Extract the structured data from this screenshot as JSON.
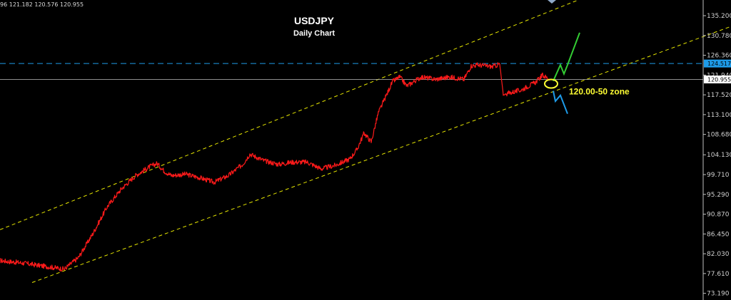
{
  "ohlc_readout": "96 121.182 120.576 120.955",
  "chart_data": {
    "type": "line",
    "title": "USDJPY",
    "subtitle": "Daily Chart",
    "xlabel": "",
    "ylabel": "",
    "ylim": [
      71.7,
      138.7
    ],
    "yticks": [
      "135.200",
      "130.780",
      "126.360",
      "121.940",
      "117.520",
      "113.100",
      "108.680",
      "104.130",
      "99.710",
      "95.290",
      "90.870",
      "86.450",
      "82.030",
      "77.610",
      "73.190"
    ],
    "grid": false,
    "price_series": {
      "name": "",
      "color": "#ff1a1a",
      "x": [
        0,
        30,
        60,
        90,
        110,
        130,
        150,
        170,
        190,
        210,
        220,
        230,
        240,
        260,
        280,
        300,
        320,
        340,
        350,
        370,
        390,
        410,
        430,
        450,
        470,
        490,
        500,
        510,
        520,
        530,
        540,
        550,
        560,
        570,
        590,
        610,
        630,
        650,
        660,
        670,
        690,
        700,
        705,
        710,
        730,
        750,
        760,
        770
      ],
      "y": [
        80.5,
        80.0,
        79.3,
        78.6,
        81.2,
        86.5,
        92.5,
        96.5,
        99.5,
        101.5,
        102.2,
        100.5,
        99.5,
        99.8,
        99.0,
        98.0,
        99.5,
        102.0,
        104.3,
        102.8,
        102.0,
        102.5,
        102.5,
        101.0,
        101.8,
        103.2,
        105.3,
        109.0,
        107.0,
        113.5,
        117.0,
        120.5,
        121.5,
        119.5,
        121.5,
        121.0,
        121.5,
        121.0,
        124.0,
        124.2,
        123.8,
        124.4,
        117.5,
        117.8,
        118.6,
        120.3,
        121.9,
        121.0
      ]
    },
    "projection_up": {
      "color": "#33cc33",
      "x": [
        775,
        785,
        790,
        795,
        812
      ],
      "y": [
        120.6,
        124.2,
        122.2,
        124.2,
        131.4
      ]
    },
    "projection_down": {
      "color": "#1e9be8",
      "x": [
        775,
        778,
        785,
        795
      ],
      "y": [
        118.4,
        116.1,
        117.4,
        113.3
      ]
    },
    "channel_upper": {
      "color": "#e6e600",
      "x": [
        0,
        810
      ],
      "y": [
        87.4,
        138.7
      ]
    },
    "channel_lower": {
      "color": "#e6e600",
      "x": [
        45,
        1024
      ],
      "y": [
        75.6,
        132.8
      ]
    },
    "resistance_level": {
      "value": 124.517,
      "label": "124.517",
      "color": "#1e9be8"
    },
    "current_price": {
      "value": 120.955,
      "label": "120.955",
      "color": "#bfbfbf"
    },
    "zone_marker": {
      "x": 772,
      "y": 120.0,
      "color": "#ffff33"
    },
    "annotations": [
      {
        "text": "120.00-50 zone",
        "x": 797,
        "y": 119.5,
        "color": "#ffff33"
      }
    ]
  }
}
